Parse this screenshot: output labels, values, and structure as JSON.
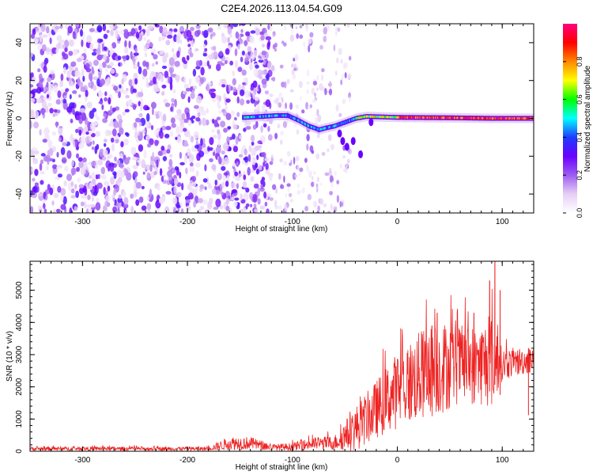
{
  "title": "C2E4.2026.113.04.54.G09",
  "chart_data": [
    {
      "type": "heatmap",
      "xlabel": "Height of straight line (km)",
      "ylabel": "Frequency (Hz)",
      "xlim": [
        -350,
        130
      ],
      "ylim": [
        -50,
        50
      ],
      "xticks": [
        -300,
        -200,
        -100,
        0,
        100
      ],
      "yticks": [
        -40,
        -20,
        0,
        20,
        40
      ],
      "grid": false,
      "colorbar": {
        "label": "Normalized spectral amplitude",
        "range": [
          0,
          1
        ],
        "ticks": [
          "0.0",
          "0.2",
          "0.4",
          "0.6",
          "0.8"
        ],
        "colors": [
          "#ffffff",
          "#e6cff5",
          "#9d5cf0",
          "#6a00ff",
          "#1f3cff",
          "#00ffff",
          "#00ff00",
          "#ffff00",
          "#ff8800",
          "#ff0000",
          "#ff0080"
        ]
      },
      "ridge": [
        {
          "x": -145,
          "y": 0.5
        },
        {
          "x": -130,
          "y": 1.0
        },
        {
          "x": -115,
          "y": 1.5
        },
        {
          "x": -105,
          "y": 1.5
        },
        {
          "x": -95,
          "y": -1.0
        },
        {
          "x": -85,
          "y": -4.0
        },
        {
          "x": -75,
          "y": -6.0
        },
        {
          "x": -68,
          "y": -5.0
        },
        {
          "x": -60,
          "y": -4.0
        },
        {
          "x": -50,
          "y": -2.0
        },
        {
          "x": -40,
          "y": 0.0
        },
        {
          "x": -30,
          "y": 1.0
        },
        {
          "x": 0,
          "y": 0.5
        },
        {
          "x": 50,
          "y": 0.3
        },
        {
          "x": 90,
          "y": 0.0
        },
        {
          "x": 130,
          "y": 0.0
        }
      ]
    },
    {
      "type": "line",
      "xlabel": "Height of straight line (km)",
      "ylabel": "SNR (10 * v/v)",
      "xlim": [
        -350,
        130
      ],
      "ylim": [
        0,
        5900
      ],
      "xticks": [
        -300,
        -200,
        -100,
        0,
        100
      ],
      "yticks": [
        0,
        1000,
        2000,
        3000,
        4000,
        5000
      ],
      "grid": false,
      "series": [
        {
          "color": "#ee2222",
          "envelope": [
            {
              "x": -350,
              "mean": 80,
              "spread": 60
            },
            {
              "x": -180,
              "mean": 80,
              "spread": 60
            },
            {
              "x": -160,
              "mean": 250,
              "spread": 220
            },
            {
              "x": -140,
              "mean": 250,
              "spread": 200
            },
            {
              "x": -120,
              "mean": 120,
              "spread": 100
            },
            {
              "x": -100,
              "mean": 140,
              "spread": 120
            },
            {
              "x": -80,
              "mean": 240,
              "spread": 200
            },
            {
              "x": -60,
              "mean": 260,
              "spread": 220
            },
            {
              "x": -40,
              "mean": 700,
              "spread": 700
            },
            {
              "x": -20,
              "mean": 1300,
              "spread": 900
            },
            {
              "x": 0,
              "mean": 1900,
              "spread": 1200
            },
            {
              "x": 20,
              "mean": 2300,
              "spread": 1400
            },
            {
              "x": 40,
              "mean": 2600,
              "spread": 1500
            },
            {
              "x": 60,
              "mean": 2700,
              "spread": 1200
            },
            {
              "x": 80,
              "mean": 2700,
              "spread": 1300
            },
            {
              "x": 90,
              "mean": 2800,
              "spread": 1500
            },
            {
              "x": 100,
              "mean": 2700,
              "spread": 500
            },
            {
              "x": 130,
              "mean": 2850,
              "spread": 400
            }
          ],
          "peaks": [
            {
              "x": 33,
              "y": 3900
            },
            {
              "x": 38,
              "y": 4300
            },
            {
              "x": 73,
              "y": 4300
            },
            {
              "x": 88,
              "y": 5300
            },
            {
              "x": 93,
              "y": 5900
            },
            {
              "x": 98,
              "y": 5000
            },
            {
              "x": 125,
              "y": 3200
            }
          ]
        }
      ]
    }
  ]
}
